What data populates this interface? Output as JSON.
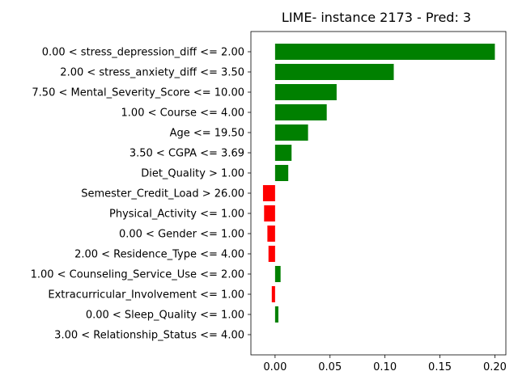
{
  "chart_data": {
    "type": "bar",
    "orientation": "horizontal",
    "title": "LIME- instance 2173 - Pred: 3",
    "xlabel": "",
    "ylabel": "",
    "xlim": [
      -0.022,
      0.21
    ],
    "xticks": [
      0.0,
      0.05,
      0.1,
      0.15,
      0.2
    ],
    "xtick_labels": [
      "0.00",
      "0.05",
      "0.10",
      "0.15",
      "0.20"
    ],
    "positive_color": "#008000",
    "negative_color": "#ff0000",
    "grid": false,
    "categories": [
      "0.00 < stress_depression_diff <= 2.00",
      "2.00 < stress_anxiety_diff <= 3.50",
      "7.50 < Mental_Severity_Score <= 10.00",
      "1.00 < Course <= 4.00",
      "Age <= 19.50",
      "3.50 < CGPA <= 3.69",
      "Diet_Quality > 1.00",
      "Semester_Credit_Load > 26.00",
      "Physical_Activity <= 1.00",
      "0.00 < Gender <= 1.00",
      "2.00 < Residence_Type <= 4.00",
      "1.00 < Counseling_Service_Use <= 2.00",
      "Extracurricular_Involvement <= 1.00",
      "0.00 < Sleep_Quality <= 1.00",
      "3.00 < Relationship_Status <= 4.00"
    ],
    "values": [
      0.2,
      0.108,
      0.056,
      0.047,
      0.03,
      0.015,
      0.012,
      -0.011,
      -0.01,
      -0.007,
      -0.006,
      0.005,
      -0.003,
      0.003,
      0.0
    ]
  }
}
